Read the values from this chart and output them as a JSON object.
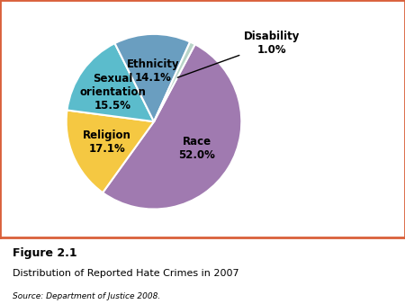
{
  "labels": [
    "Race",
    "Religion",
    "Sexual\norientation",
    "Ethnicity",
    "Disability"
  ],
  "values": [
    52.0,
    17.1,
    15.5,
    14.1,
    1.0
  ],
  "colors": [
    "#a07ab0",
    "#f5c842",
    "#5bbccc",
    "#6a9ec0",
    "#b8d4c8"
  ],
  "pct_labels": [
    "52.0%",
    "17.1%",
    "15.5%",
    "14.1%",
    "1.0%"
  ],
  "figure_label": "Figure 2.1",
  "title": "Distribution of Reported Hate Crimes in 2007",
  "source": "Source: Department of Justice 2008.",
  "border_color": "#d9603a",
  "background_color": "#ffffff",
  "start_angle": 90
}
